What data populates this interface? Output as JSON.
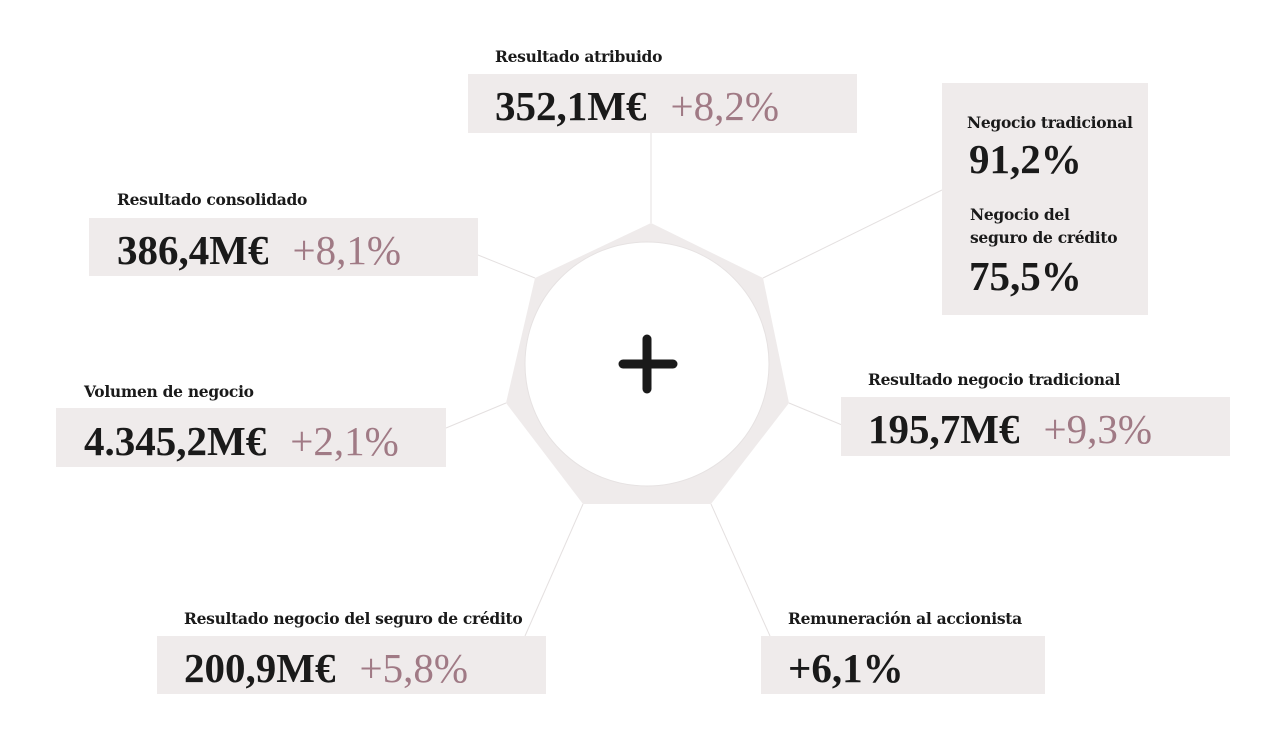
{
  "colors": {
    "box": "#efebeb",
    "accent": "#a07a85",
    "text": "#1a1a1a"
  },
  "center_icon": "plus-icon",
  "resultado_atribuido": {
    "label": "Resultado  atribuido",
    "value": "352,1M€",
    "change": "+8,2%"
  },
  "resultado_consolidado": {
    "label": "Resultado consolidado",
    "value": "386,4M€",
    "change": "+8,1%"
  },
  "volumen_negocio": {
    "label": "Volumen de negocio",
    "value": "4.345,2M€",
    "change": "+2,1%"
  },
  "negocio": {
    "tradicional_label": "Negocio tradicional",
    "tradicional_value": "91,2%",
    "seguro_label_1": "Negocio del",
    "seguro_label_2": "seguro de crédito",
    "seguro_value": "75,5%"
  },
  "resultado_negocio_tradicional": {
    "label": "Resultado  negocio tradicional",
    "value": "195,7M€",
    "change": "+9,3%"
  },
  "resultado_seguro_credito": {
    "label": "Resultado  negocio del seguro de crédito",
    "value": "200,9M€",
    "change": "+5,8%"
  },
  "remuneracion": {
    "label": "Remuneración al accionista",
    "value": "+6,1%"
  }
}
